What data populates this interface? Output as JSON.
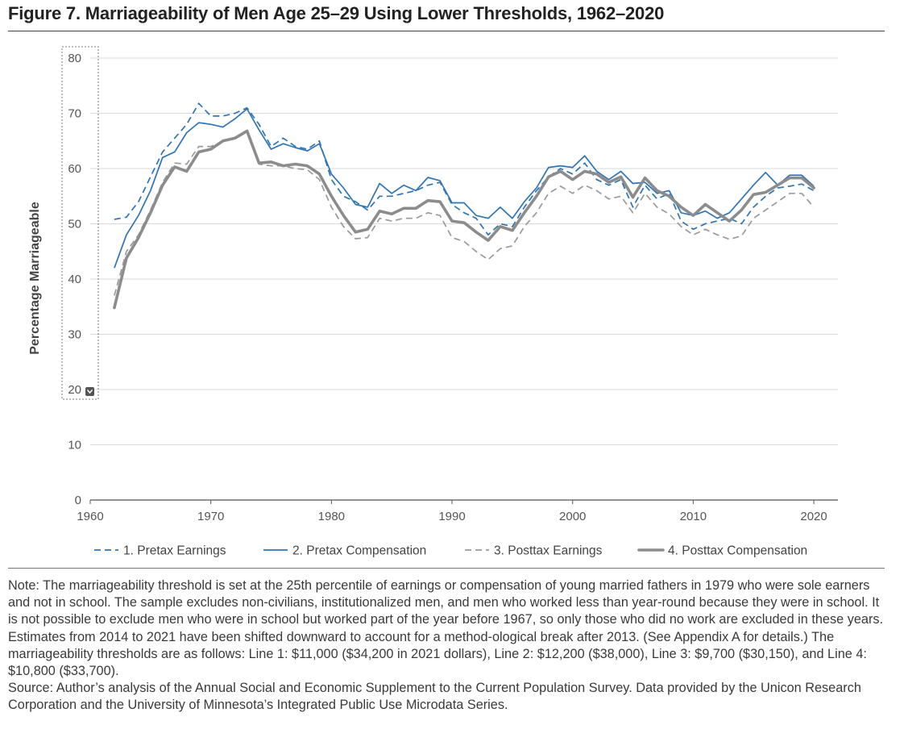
{
  "title": "Figure 7. Marriageability of Men Age 25–29 Using Lower Thresholds, 1962–2020",
  "note": "Note: The marriageability threshold is set at the 25th percentile of earnings or compensation of young married fathers in 1979 who were sole earners and not in school. The sample excludes non-civilians, institutionalized men, and men who worked less than year-round because they were in school. It is not possible to exclude men who were in school but worked part of the year before 1967, so only those who did no work are excluded in these years. Estimates from 2014 to 2021 have been shifted downward to account for a method-ological break after 2013. (See Appendix A for details.) The marriageability thresholds are as follows: Line 1: $11,000 ($34,200 in 2021 dollars), Line 2: $12,200 ($38,000), Line 3: $9,700 ($30,150), and Line 4: $10,800 ($33,700).",
  "source": "Source: Author’s analysis of the Annual Social and Economic Supplement to the Current Population Survey. Data provided by the Unicon Research Corporation and the University of Minnesota’s Integrated Public Use Microdata Series.",
  "colors": {
    "blue": "#2e75b6",
    "gray_dashed": "#9a9a9a",
    "gray_thick": "#8c8c8c",
    "grid": "#d9d9d9",
    "axis": "#555555"
  },
  "chart_data": {
    "type": "line",
    "ylabel": "Percentage Marriageable",
    "xlabel": "",
    "xlim": [
      1960,
      2022
    ],
    "ylim": [
      0,
      80
    ],
    "xticks": [
      1960,
      1970,
      1980,
      1990,
      2000,
      2010,
      2020
    ],
    "yticks": [
      0,
      10,
      20,
      30,
      40,
      50,
      60,
      70,
      80
    ],
    "grid": "horizontal",
    "legend_position": "bottom",
    "x": [
      1962,
      1963,
      1964,
      1965,
      1966,
      1967,
      1968,
      1969,
      1970,
      1971,
      1972,
      1973,
      1974,
      1975,
      1976,
      1977,
      1978,
      1979,
      1980,
      1981,
      1982,
      1983,
      1984,
      1985,
      1986,
      1987,
      1988,
      1989,
      1990,
      1991,
      1992,
      1993,
      1994,
      1995,
      1996,
      1997,
      1998,
      1999,
      2000,
      2001,
      2002,
      2003,
      2004,
      2005,
      2006,
      2007,
      2008,
      2009,
      2010,
      2011,
      2012,
      2013,
      2014,
      2015,
      2016,
      2017,
      2018,
      2019,
      2020
    ],
    "series": [
      {
        "name": "1. Pretax Earnings",
        "style": "dashed",
        "color": "#2e75b6",
        "values": [
          50.8,
          51.2,
          54.0,
          58.5,
          63.0,
          65.5,
          68.0,
          71.8,
          69.5,
          69.5,
          70.0,
          71.0,
          68.0,
          64.0,
          65.5,
          64.0,
          63.5,
          65.0,
          58.0,
          55.0,
          54.0,
          52.5,
          55.0,
          55.0,
          55.5,
          56.0,
          57.0,
          57.5,
          53.5,
          52.0,
          51.0,
          48.0,
          50.0,
          49.5,
          53.0,
          56.0,
          58.5,
          60.0,
          59.0,
          61.0,
          58.0,
          57.0,
          58.0,
          53.0,
          57.0,
          54.5,
          55.5,
          50.5,
          49.0,
          50.0,
          50.5,
          51.0,
          50.0,
          53.0,
          55.0,
          56.5,
          56.8,
          57.2,
          56.0
        ]
      },
      {
        "name": "2. Pretax Compensation",
        "style": "solid",
        "color": "#2e75b6",
        "values": [
          42.0,
          48.0,
          51.5,
          56.0,
          62.0,
          63.0,
          66.5,
          68.3,
          68.0,
          67.5,
          69.0,
          70.8,
          67.0,
          63.5,
          64.5,
          63.8,
          63.2,
          64.5,
          59.0,
          56.5,
          53.5,
          53.0,
          57.3,
          55.5,
          57.0,
          56.0,
          58.4,
          57.8,
          53.8,
          53.8,
          51.5,
          51.0,
          53.0,
          51.0,
          54.0,
          56.5,
          60.2,
          60.5,
          60.2,
          62.3,
          59.5,
          58.0,
          59.5,
          57.3,
          57.5,
          55.5,
          56.0,
          52.0,
          51.5,
          52.3,
          51.0,
          52.0,
          54.5,
          57.0,
          59.3,
          57.0,
          58.8,
          58.8,
          56.8
        ]
      },
      {
        "name": "3. Posttax Earnings",
        "style": "dashed",
        "color": "#9a9a9a",
        "values": [
          37.0,
          45.0,
          48.0,
          52.5,
          57.5,
          61.0,
          60.8,
          64.0,
          64.0,
          65.0,
          65.5,
          66.5,
          60.8,
          60.5,
          60.5,
          60.0,
          59.8,
          58.0,
          53.0,
          49.5,
          47.3,
          47.5,
          51.0,
          50.5,
          51.0,
          51.0,
          52.0,
          51.5,
          47.5,
          46.8,
          45.0,
          43.5,
          45.5,
          46.0,
          49.5,
          52.0,
          55.5,
          56.8,
          55.5,
          57.0,
          56.0,
          54.5,
          55.0,
          52.0,
          55.5,
          53.0,
          51.8,
          49.5,
          48.0,
          49.0,
          48.0,
          47.2,
          47.8,
          51.0,
          52.5,
          54.0,
          55.5,
          55.5,
          53.0
        ]
      },
      {
        "name": "4. Posttax Compensation",
        "style": "thick",
        "color": "#8c8c8c",
        "values": [
          34.8,
          43.8,
          47.5,
          52.0,
          57.0,
          60.3,
          59.5,
          63.0,
          63.5,
          65.0,
          65.5,
          66.8,
          61.0,
          61.2,
          60.5,
          60.8,
          60.5,
          59.0,
          55.0,
          51.5,
          48.5,
          49.0,
          52.3,
          51.8,
          52.8,
          52.8,
          54.2,
          54.0,
          50.5,
          50.2,
          48.5,
          47.0,
          49.5,
          48.8,
          52.0,
          55.0,
          58.5,
          59.5,
          58.0,
          59.5,
          59.0,
          57.5,
          58.5,
          54.8,
          58.3,
          56.0,
          55.0,
          53.0,
          51.5,
          53.5,
          52.0,
          50.5,
          52.5,
          55.3,
          55.7,
          57.0,
          58.3,
          58.3,
          56.5
        ]
      }
    ]
  }
}
